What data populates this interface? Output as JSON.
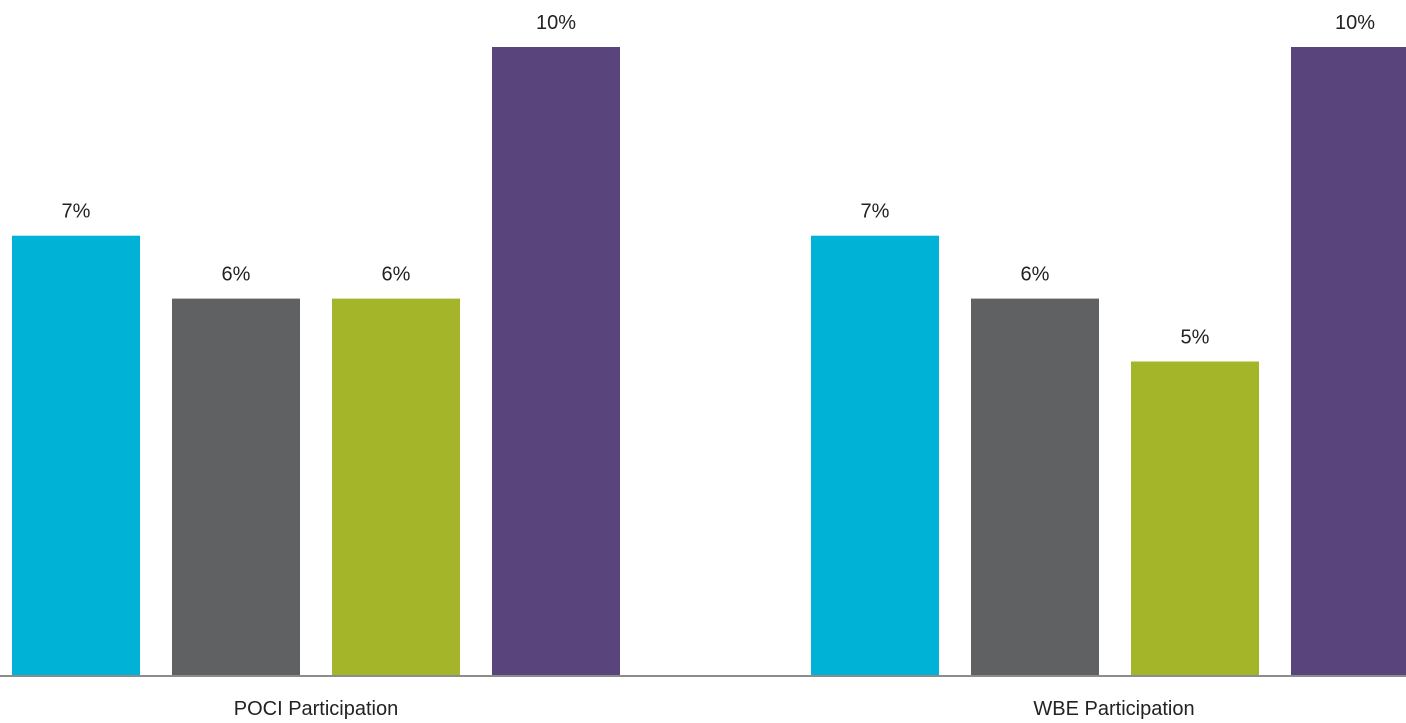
{
  "chart_data": {
    "type": "bar",
    "categories": [
      "POCI Participation",
      "WBE Participation"
    ],
    "series": [
      {
        "values": [
          7,
          7
        ],
        "labels": [
          "7%",
          "7%"
        ],
        "color": "#00B2D6"
      },
      {
        "values": [
          6,
          6
        ],
        "labels": [
          "6%",
          "6%"
        ],
        "color": "#606163"
      },
      {
        "values": [
          6,
          5
        ],
        "labels": [
          "6%",
          "5%"
        ],
        "color": "#A4B52A"
      },
      {
        "values": [
          10,
          10
        ],
        "labels": [
          "10%",
          "10%"
        ],
        "color": "#59447B"
      }
    ],
    "ylim": [
      0,
      10
    ],
    "unit": "%",
    "grid": false,
    "legend": "none",
    "axis_color": "#8C8C8C"
  }
}
